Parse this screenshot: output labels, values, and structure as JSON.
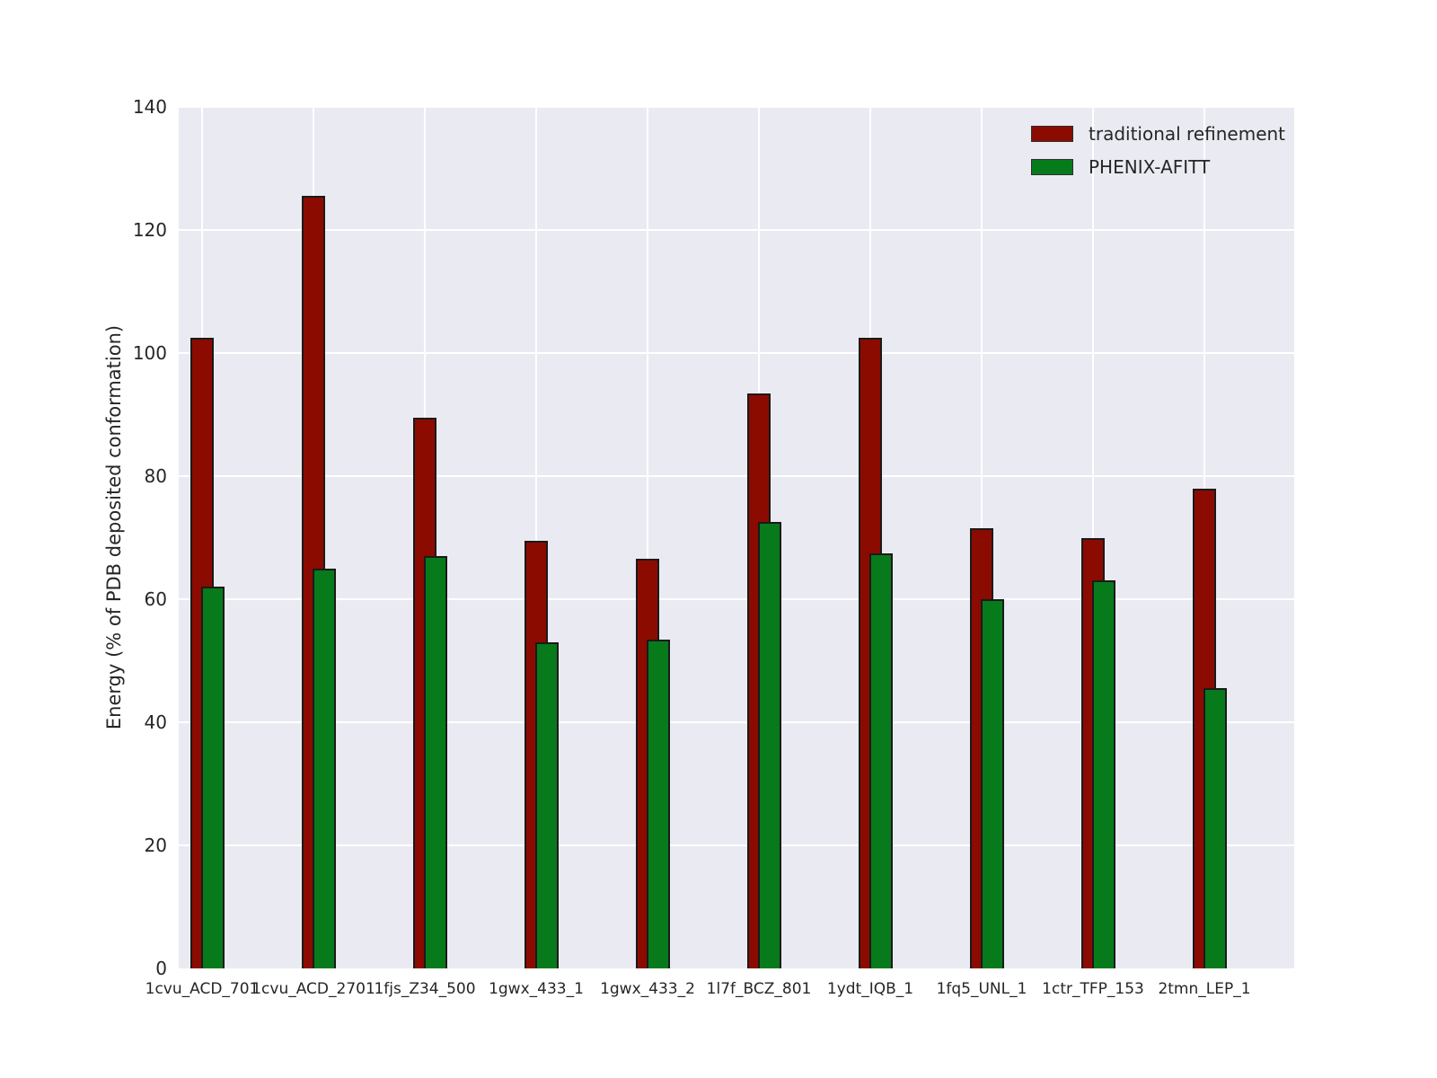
{
  "figure": {
    "background": "#ffffff",
    "plot_background": "#EAEAF2",
    "grid_color": "#ffffff",
    "text_color": "#262626"
  },
  "chart_data": {
    "type": "bar",
    "title": "",
    "xlabel": "",
    "ylabel": "Energy (% of PDB deposited conformation)",
    "ylim": [
      0,
      140
    ],
    "yticks": [
      0,
      20,
      40,
      60,
      80,
      100,
      120,
      140
    ],
    "grid": true,
    "legend_position": "upper-right-inside",
    "bar_edge_color": "#1a1a1a",
    "bars_overlap": "green bar offset right by half width, drawn on top of red bar",
    "categories": [
      "1cvu_ACD_701",
      "1cvu_ACD_2701",
      "1fjs_Z34_500",
      "1gwx_433_1",
      "1gwx_433_2",
      "1l7f_BCZ_801",
      "1ydt_IQB_1",
      "1fq5_UNL_1",
      "1ctr_TFP_153",
      "2tmn_LEP_1"
    ],
    "series": [
      {
        "name": "traditional refinement",
        "color": "#8B0B00",
        "values": [
          102.5,
          125.5,
          89.5,
          69.5,
          66.5,
          93.5,
          102.5,
          71.5,
          70,
          78
        ]
      },
      {
        "name": "PHENIX-AFITT",
        "color": "#077A1B",
        "values": [
          62,
          65,
          67,
          53,
          53.5,
          72.5,
          67.5,
          60,
          63,
          45.5
        ]
      }
    ]
  }
}
